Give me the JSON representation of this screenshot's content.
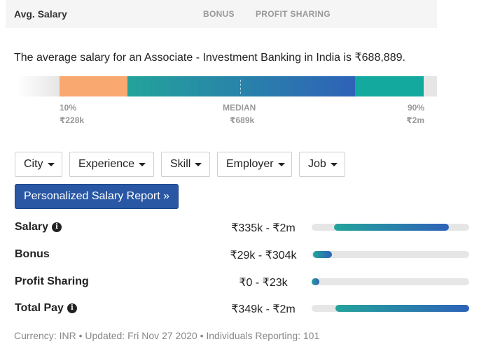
{
  "header": {
    "avg_salary_label": "Avg. Salary",
    "tab_bonus": "BONUS",
    "tab_profit_sharing": "PROFIT SHARING"
  },
  "summary": "The average salary for an Associate - Investment Banking in India is ₹688,889.",
  "range": {
    "low_pct": "10%",
    "low_value": "₹228k",
    "median_label": "MEDIAN",
    "median_value": "₹689k",
    "high_pct": "90%",
    "high_value": "₹2m",
    "colors": {
      "low": "#f9a870",
      "mid_start": "#23a39b",
      "mid_end": "#2e62b8",
      "high": "#13a99f"
    }
  },
  "filters": [
    "City",
    "Experience",
    "Skill",
    "Employer",
    "Job"
  ],
  "report_button": "Personalized Salary Report »",
  "pay_rows": [
    {
      "label": "Salary",
      "range": "₹335k - ₹2m",
      "info": true,
      "fill_start": 0.14,
      "fill_end": 0.87
    },
    {
      "label": "Bonus",
      "range": "₹29k - ₹304k",
      "info": false,
      "fill_start": 0.01,
      "fill_end": 0.13
    },
    {
      "label": "Profit Sharing",
      "range": "₹0 - ₹23k",
      "info": false,
      "fill_start": 0.0,
      "fill_end": 0.05
    },
    {
      "label": "Total Pay",
      "range": "₹349k - ₹2m",
      "info": true,
      "fill_start": 0.15,
      "fill_end": 1.0
    }
  ],
  "footer": "Currency: INR • Updated: Fri Nov 27 2020 • Individuals Reporting: 101"
}
